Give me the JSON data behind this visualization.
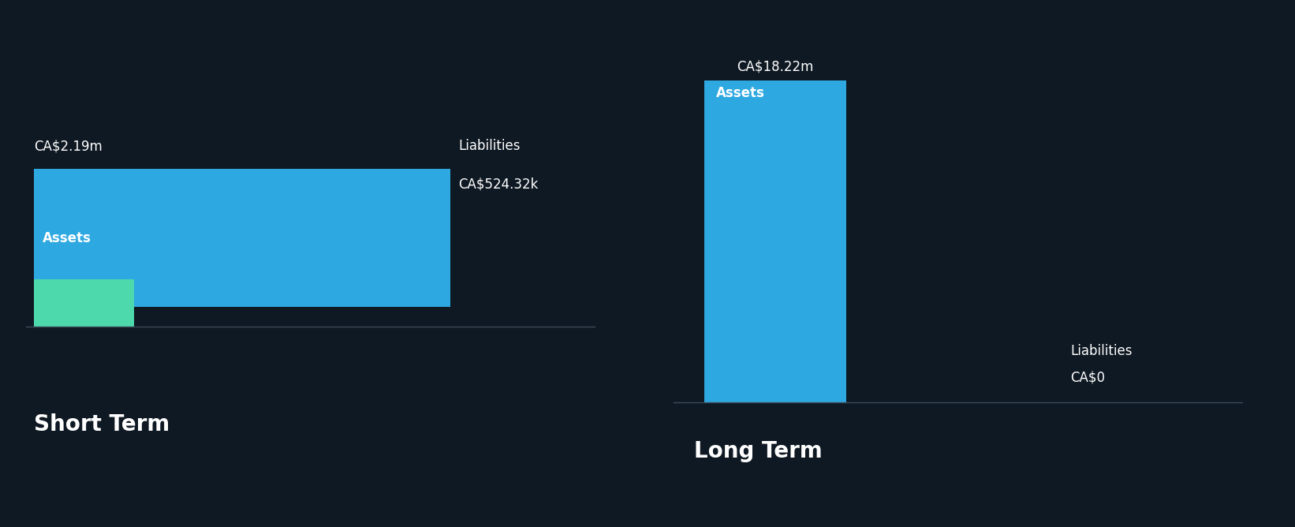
{
  "background_color": "#0f1923",
  "sections": [
    "Short Term",
    "Long Term"
  ],
  "short_term": {
    "assets_value": 2.19,
    "liabilities_value": 0.52432,
    "assets_label": "CA$2.19m",
    "liabilities_label": "CA$524.32k",
    "assets_color": "#2ea8e0",
    "liabilities_color": "#4dd9ac"
  },
  "long_term": {
    "assets_value": 18.22,
    "liabilities_value": 0.0,
    "assets_label": "CA$18.22m",
    "liabilities_label": "CA$0",
    "assets_color": "#2ea8e0",
    "liabilities_color": "#4dd9ac"
  },
  "bar_inner_label_assets": "Assets",
  "bar_inner_label_liabilities": "Liabilities",
  "section_label_color": "#ffffff",
  "value_label_color": "#ffffff",
  "inner_label_color": "#ffffff",
  "section_title_fontsize": 20,
  "value_label_fontsize": 12,
  "inner_label_fontsize": 12,
  "separator_color": "#3a4a58"
}
